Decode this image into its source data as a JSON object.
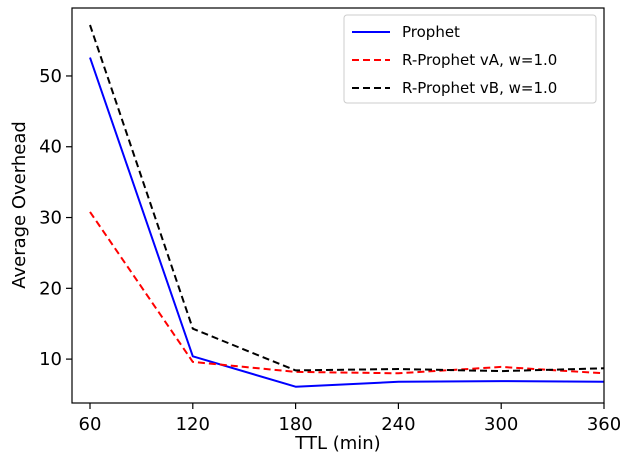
{
  "chart_data": {
    "type": "line",
    "xlabel": "TTL (min)",
    "ylabel": "Average Overhead",
    "x": [
      60,
      120,
      180,
      240,
      300,
      360
    ],
    "xticks": [
      "60",
      "120",
      "180",
      "240",
      "300",
      "360"
    ],
    "yticks": [
      "10",
      "20",
      "30",
      "40",
      "50"
    ],
    "ytick_values": [
      10,
      20,
      30,
      40,
      50
    ],
    "xlim": [
      60,
      360
    ],
    "ylim": [
      3.8,
      59.6
    ],
    "grid": false,
    "legend_position": "top-right",
    "series": [
      {
        "name": "Prophet",
        "values": [
          52.6,
          10.4,
          6.1,
          6.8,
          6.9,
          6.8
        ],
        "color": "#0000ff",
        "style": "solid"
      },
      {
        "name": "R-Prophet vA, w=1.0",
        "values": [
          30.8,
          9.6,
          8.2,
          8.0,
          8.9,
          8.0
        ],
        "color": "#ff0000",
        "style": "dashed"
      },
      {
        "name": "R-Prophet vB, w=1.0",
        "values": [
          57.2,
          14.3,
          8.4,
          8.6,
          8.3,
          8.7
        ],
        "color": "#000000",
        "style": "dashed"
      }
    ]
  }
}
